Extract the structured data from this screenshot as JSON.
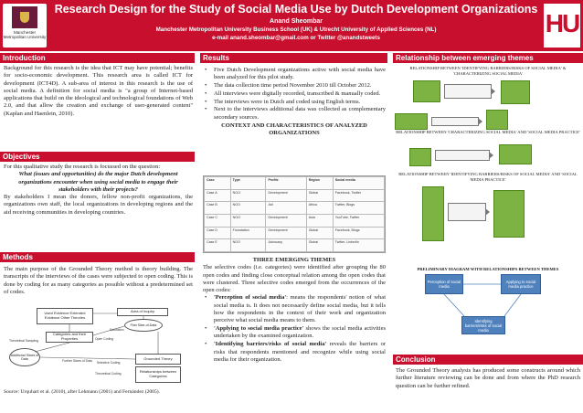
{
  "header": {
    "title": "Research Design for the Study of Social Media Use by Dutch Development Organizations",
    "author": "Anand Sheombar",
    "affiliation": "Manchester Metropolitan University Business School (UK) & Utrecht University of Applied Sciences (NL)",
    "contact": "e-mail anand.sheombar@gmail.com or Twitter @anandstweets",
    "logo_left_text": "Manchester Metropolitan University",
    "logo_right_text": "HU"
  },
  "introduction": {
    "heading": "Introduction",
    "body": "Background for this research is the idea that ICT may have potential; benefits for socio-economic development. This research area is called ICT for development (ICT4D). A sub-area of interest in this research is the use of social media. A definition for social media is \"a group of Internet-based applications that build on the ideological and technological foundations of Web 2.0, and that allow the creation and exchange of user-generated content\" (Kaplan and Haenlein, 2010)."
  },
  "objectives": {
    "heading": "Objectives",
    "intro": "For this qualitative study the research is focussed on the question:",
    "question": "What (issues and opportunities) do the major Dutch development organizations encounter when using social media to engage their stakeholders with their projects?",
    "body": "By stakeholders I mean the donors, fellow non-profit organizations, the organizations own staff, the local organizations in developing regions and the aid receiving communities in developing countries."
  },
  "methods": {
    "heading": "Methods",
    "body": "The main purpose of the Grounded Theory method is theory building. The transcripts of the interviews of the cases were subjected to open coding. This is done by coding for as many categories as possible without a predetermined set of codes.",
    "source": "Source: Urquhart et al. (2010), after Lehmann (2001) and Fernández (2005).",
    "diagram": {
      "box1": "Used Evidence Extended Evidence Other Theories",
      "box1_title": "Used Evidence",
      "area": "Area of Inquiry",
      "first_slice": "First Slice-of-Data",
      "categories": "Categories and their Properties",
      "theory": "Grounded Theory",
      "relationships": "Relationships between Categories",
      "further_slices": "Further Slices of Data",
      "additional": "Additional Slices of Data",
      "theoretical_sampling": "Theoretical Sampling",
      "saturation": "Saturation",
      "lbl_open": "Open Coding",
      "lbl_selective": "Selective Coding",
      "lbl_theoretical": "Theoretical Coding"
    }
  },
  "results": {
    "heading": "Results",
    "bullets": [
      "Five Dutch Development organizations active with social media have been analyzed for this pilot study.",
      "The data collection time period November 2010 till October 2012.",
      "All interviews were digitally recorded, transcribed & manually coded.",
      "The interviews were in Dutch and coded using English terms.",
      "Next to the interviews additional data was collected as complementary secondary sources."
    ],
    "table_title": "CONTEXT AND CHARACTERISTICS OF ANALYZED ORGANIZATIONS",
    "table_header": [
      "Case",
      "Type",
      "Profile",
      "Region",
      "Social media"
    ],
    "table_rows": [
      [
        "Case A",
        "NGO",
        "Development",
        "Global",
        "Facebook, Twitter"
      ],
      [
        "Case B",
        "NGO",
        "Aid",
        "Africa",
        "Twitter, Blogs"
      ],
      [
        "Case C",
        "NGO",
        "Development",
        "Asia",
        "YouTube, Twitter"
      ],
      [
        "Case D",
        "Foundation",
        "Development",
        "Global",
        "Facebook, Blogs"
      ],
      [
        "Case E",
        "NGO",
        "Advocacy",
        "Global",
        "Twitter, LinkedIn"
      ]
    ],
    "themes_title": "THREE EMERGING THEMES",
    "themes_intro": "The selective codes (i.e. categories) were identified after grouping the 80 open codes and finding close conceptual relation among the open codes that were clustered. Three selective codes emerged from the occurrences of the open codes:",
    "themes": [
      {
        "name": "'Perception of social media'",
        "text": ": means the respondents' notion of what social media is. It does not necessarily define social media, but it tells how the respondents in the context of their work and organization perceive what social media means to them."
      },
      {
        "name": "'Applying to social media practice'",
        "text": " shows the social media activities undertaken by the examined organization."
      },
      {
        "name": "'Identifying barriers/risks of social media'",
        "text": " reveals the barriers or risks that respondents mentioned and recognize while using social media for their organization."
      }
    ]
  },
  "relationships": {
    "heading": "Relationship between emerging themes",
    "cap1": "RELATIONSHIP BETWEEN 'IDENTIFYING BARRIERS/RISKS OF SOCIAL MEDIA' & 'CHARACTERIZING SOCIAL MEDIA'",
    "cap2": "RELATIONSHIP BETWEEN 'CHARACTERIZING SOCIAL MEDIA' AND 'SOCIAL MEDIA PRACTICE'",
    "cap3": "RELATIONSHIP BETWEEN 'IDENTIFYING BARRIERS/RISKS OF SOCIAL MEDIA' AND 'SOCIAL MEDIA PRACTICE'",
    "cap4": "PRELIMINARY DIAGRAM WITH RELATIONSHIPS BETWEEN THEMES",
    "prelim_left": "Perception of social media",
    "prelim_right": "Applying to social media practice",
    "prelim_bottom": "Identifying barriers/risks of social media"
  },
  "conclusion": {
    "heading": "Conclusion",
    "body": "The Grounded Theory analysis has produced some constructs around which further literature reviewing can be done and from where the PhD research question can be further refined."
  },
  "colors": {
    "brand_red": "#c8102e",
    "diagram_green": "#7cb342",
    "diagram_blue": "#4f81bd"
  }
}
